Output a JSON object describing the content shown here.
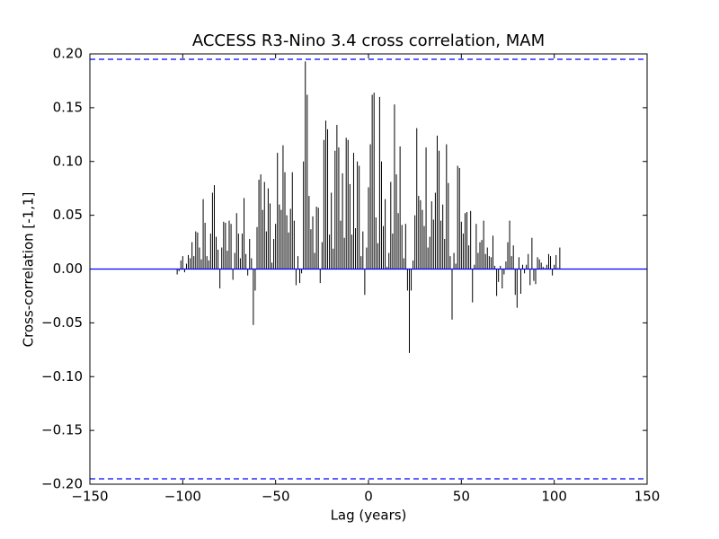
{
  "chart_data": {
    "type": "stem",
    "title": "ACCESS R3-Nino 3.4 cross correlation, MAM",
    "xlabel": "Lag (years)",
    "ylabel": "Cross-correlation [-1,1]",
    "color": "#000000",
    "xlim": [
      -150,
      150
    ],
    "ylim": [
      -0.2,
      0.2
    ],
    "xticks": [
      {
        "value": -150,
        "label": "−150"
      },
      {
        "value": -100,
        "label": "−100"
      },
      {
        "value": -50,
        "label": "−50"
      },
      0,
      50,
      100,
      150
    ],
    "yticks": [
      {
        "value": -0.2,
        "label": "−0.20"
      },
      {
        "value": -0.15,
        "label": "−0.15"
      },
      {
        "value": -0.1,
        "label": "−0.10"
      },
      {
        "value": -0.05,
        "label": "−0.05"
      },
      {
        "value": 0,
        "label": "0.00"
      },
      {
        "value": 0.05,
        "label": "0.05"
      },
      {
        "value": 0.1,
        "label": "0.10"
      },
      {
        "value": 0.15,
        "label": "0.15"
      },
      {
        "value": 0.2,
        "label": "0.20"
      }
    ],
    "reference_lines": [
      {
        "value": 0,
        "style": "solid",
        "color": "#0000ff"
      },
      {
        "value": 0.195,
        "style": "dashed",
        "color": "#0000ff"
      },
      {
        "value": -0.195,
        "style": "dashed",
        "color": "#0000ff"
      }
    ],
    "x": [
      -103,
      -102,
      -101,
      -100,
      -99,
      -98,
      -97,
      -96,
      -95,
      -94,
      -93,
      -92,
      -91,
      -90,
      -89,
      -88,
      -87,
      -86,
      -85,
      -84,
      -83,
      -82,
      -81,
      -80,
      -79,
      -78,
      -77,
      -76,
      -75,
      -74,
      -73,
      -72,
      -71,
      -70,
      -69,
      -68,
      -67,
      -66,
      -65,
      -64,
      -63,
      -62,
      -61,
      -60,
      -59,
      -58,
      -57,
      -56,
      -55,
      -54,
      -53,
      -52,
      -51,
      -50,
      -49,
      -48,
      -47,
      -46,
      -45,
      -44,
      -43,
      -42,
      -41,
      -40,
      -39,
      -38,
      -37,
      -36,
      -35,
      -34,
      -33,
      -32,
      -31,
      -30,
      -29,
      -28,
      -27,
      -26,
      -25,
      -24,
      -23,
      -22,
      -21,
      -20,
      -19,
      -18,
      -17,
      -16,
      -15,
      -14,
      -13,
      -12,
      -11,
      -10,
      -9,
      -8,
      -7,
      -6,
      -5,
      -4,
      -3,
      -2,
      -1,
      0,
      1,
      2,
      3,
      4,
      5,
      6,
      7,
      8,
      9,
      10,
      11,
      12,
      13,
      14,
      15,
      16,
      17,
      18,
      19,
      20,
      21,
      22,
      23,
      24,
      25,
      26,
      27,
      28,
      29,
      30,
      31,
      32,
      33,
      34,
      35,
      36,
      37,
      38,
      39,
      40,
      41,
      42,
      43,
      44,
      45,
      46,
      47,
      48,
      49,
      50,
      51,
      52,
      53,
      54,
      55,
      56,
      57,
      58,
      59,
      60,
      61,
      62,
      63,
      64,
      65,
      66,
      67,
      68,
      69,
      70,
      71,
      72,
      73,
      74,
      75,
      76,
      77,
      78,
      79,
      80,
      81,
      82,
      83,
      84,
      85,
      86,
      87,
      88,
      89,
      90,
      91,
      92,
      93,
      94,
      95,
      96,
      97,
      98,
      99,
      100,
      101,
      102,
      103
    ],
    "values": [
      -0.005,
      -0.002,
      0.008,
      0.012,
      -0.003,
      0.005,
      0.013,
      0.01,
      0.025,
      0.012,
      0.035,
      0.034,
      0.02,
      0.009,
      0.065,
      0.043,
      0.012,
      0.008,
      0.033,
      0.071,
      0.078,
      0.03,
      0.018,
      -0.018,
      0.02,
      0.044,
      0.043,
      0.017,
      0.045,
      0.042,
      -0.01,
      0.015,
      0.052,
      0.033,
      0.01,
      0.033,
      0.066,
      0.014,
      -0.006,
      0.028,
      0.01,
      -0.052,
      -0.02,
      0.039,
      0.083,
      0.088,
      0.055,
      0.081,
      0.035,
      0.075,
      0.061,
      0.006,
      0.028,
      0.042,
      0.108,
      0.06,
      0.055,
      0.115,
      0.09,
      0.05,
      0.034,
      0.056,
      0.09,
      0.045,
      -0.015,
      0.012,
      -0.013,
      -0.004,
      0.1,
      0.193,
      0.162,
      0.068,
      0.037,
      0.049,
      0.015,
      0.058,
      0.057,
      -0.013,
      0.025,
      0.12,
      0.138,
      0.13,
      0.032,
      0.071,
      0.019,
      0.11,
      0.134,
      0.113,
      0.045,
      0.089,
      0.029,
      0.122,
      0.12,
      0.079,
      0.032,
      0.108,
      0.038,
      0.1,
      0.096,
      0.012,
      0.035,
      -0.024,
      0.02,
      0.076,
      0.116,
      0.162,
      0.164,
      0.048,
      0.024,
      0.16,
      0.1,
      0.04,
      0.065,
      0.002,
      0.015,
      0.081,
      0.033,
      0.153,
      0.088,
      0.052,
      0.114,
      0.041,
      0.01,
      0.042,
      -0.02,
      -0.078,
      -0.02,
      0.008,
      0.05,
      0.131,
      0.068,
      0.064,
      0.055,
      0.04,
      0.113,
      0.02,
      0.03,
      0.063,
      0.046,
      0.071,
      0.124,
      0.11,
      0.045,
      0.06,
      0.028,
      0.116,
      0.08,
      0.012,
      -0.047,
      0.015,
      0.005,
      0.096,
      0.094,
      0.044,
      0.033,
      0.052,
      0.053,
      0.022,
      0.054,
      -0.031,
      0.004,
      0.042,
      0.015,
      0.025,
      0.027,
      0.045,
      0.014,
      0.02,
      0.012,
      0.011,
      0.031,
      0.003,
      -0.025,
      -0.012,
      0.003,
      -0.018,
      -0.005,
      0.007,
      0.025,
      0.045,
      0.012,
      0.022,
      -0.024,
      -0.036,
      0.011,
      -0.023,
      0.004,
      -0.004,
      0.004,
      0.014,
      -0.015,
      0.029,
      -0.011,
      -0.014,
      0.011,
      0.009,
      0.006,
      0.002,
      0.001,
      0.004,
      0.014,
      0.012,
      -0.006,
      0.004,
      0.013,
      0.001,
      0.02
    ]
  }
}
